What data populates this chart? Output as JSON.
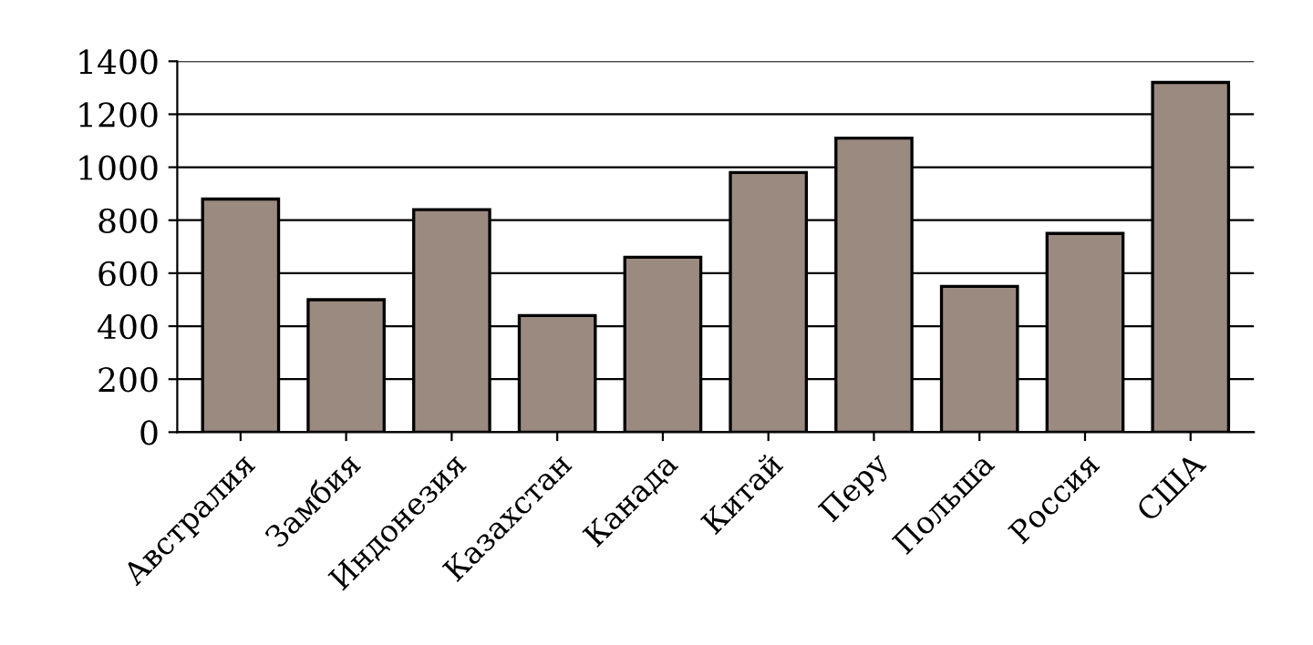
{
  "chart_data": {
    "type": "bar",
    "categories": [
      "Австралия",
      "Замбия",
      "Индонезия",
      "Казахстан",
      "Канада",
      "Китай",
      "Перу",
      "Польша",
      "Россия",
      "США"
    ],
    "values": [
      880,
      500,
      840,
      440,
      660,
      980,
      1110,
      550,
      750,
      1320
    ],
    "color": "#9b8a80",
    "ylim": [
      0,
      1400
    ],
    "yticks": [
      0,
      200,
      400,
      600,
      800,
      1000,
      1200,
      1400
    ],
    "grid": "y"
  }
}
